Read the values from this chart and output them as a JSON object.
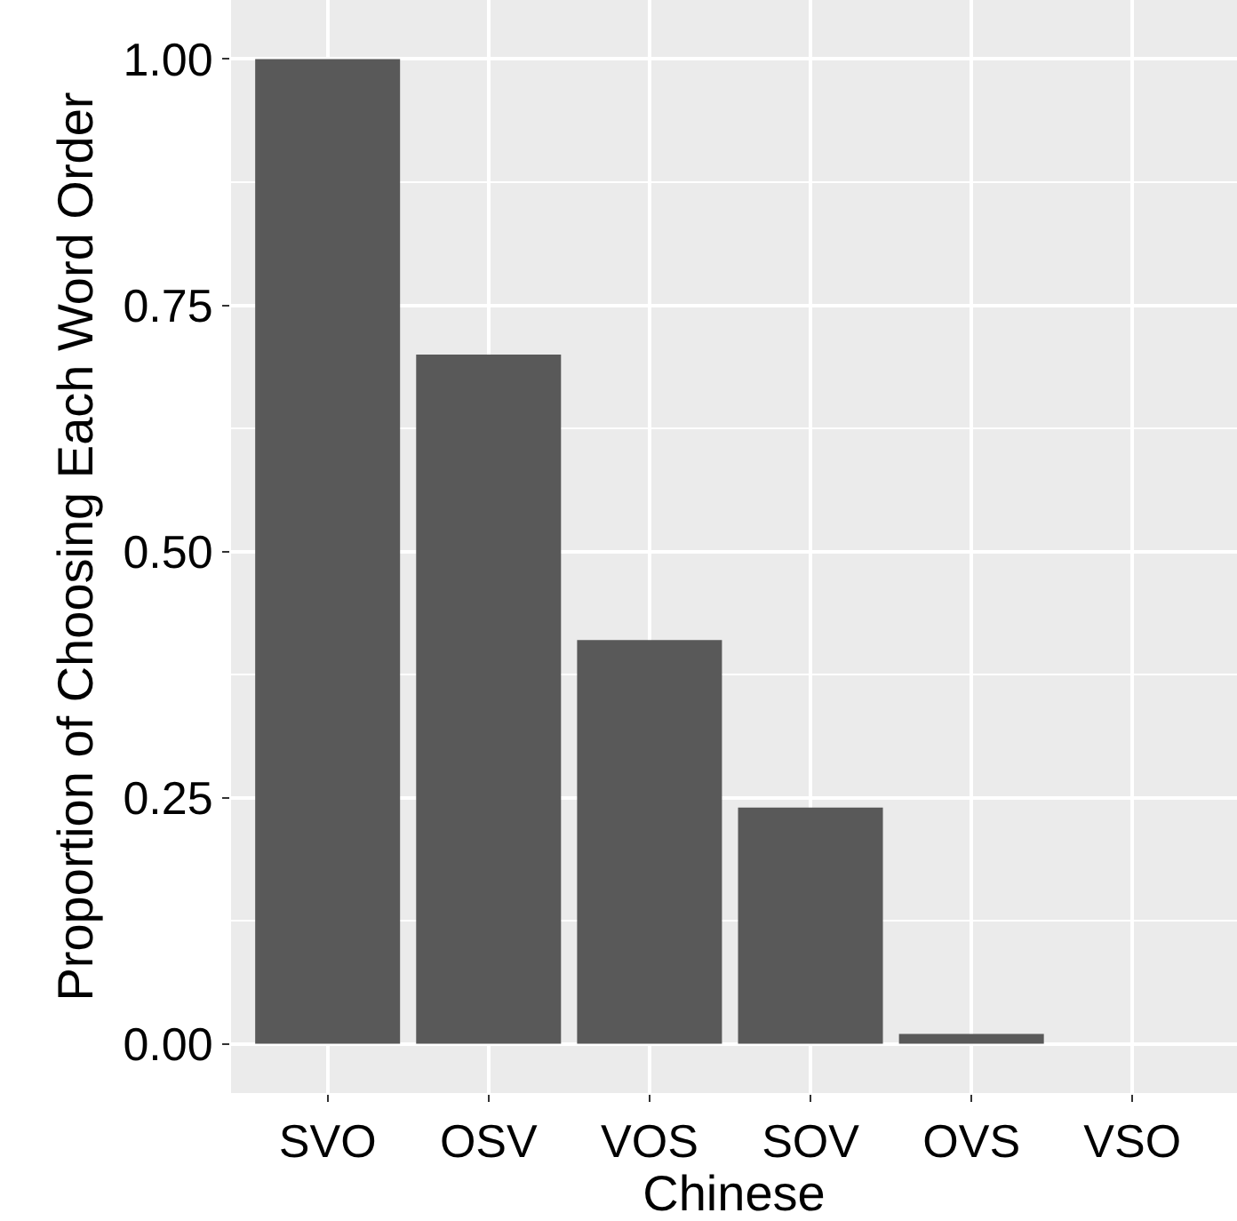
{
  "chart_data": {
    "type": "bar",
    "xlabel": "Chinese",
    "ylabel": "Proportion of Choosing Each Word Order",
    "categories": [
      "SVO",
      "OSV",
      "VOS",
      "SOV",
      "OVS",
      "VSO"
    ],
    "values": [
      1.0,
      0.7,
      0.41,
      0.24,
      0.01,
      0.0
    ],
    "color": "#595959",
    "ylim": [
      -0.05,
      1.06
    ],
    "yticks": [
      {
        "value": 0,
        "label": "0.00"
      },
      {
        "value": 0.25,
        "label": "0.25"
      },
      {
        "value": 0.5,
        "label": "0.50"
      },
      {
        "value": 0.75,
        "label": "0.75"
      },
      {
        "value": 1,
        "label": "1.00"
      }
    ],
    "grid": true,
    "legend": false
  }
}
